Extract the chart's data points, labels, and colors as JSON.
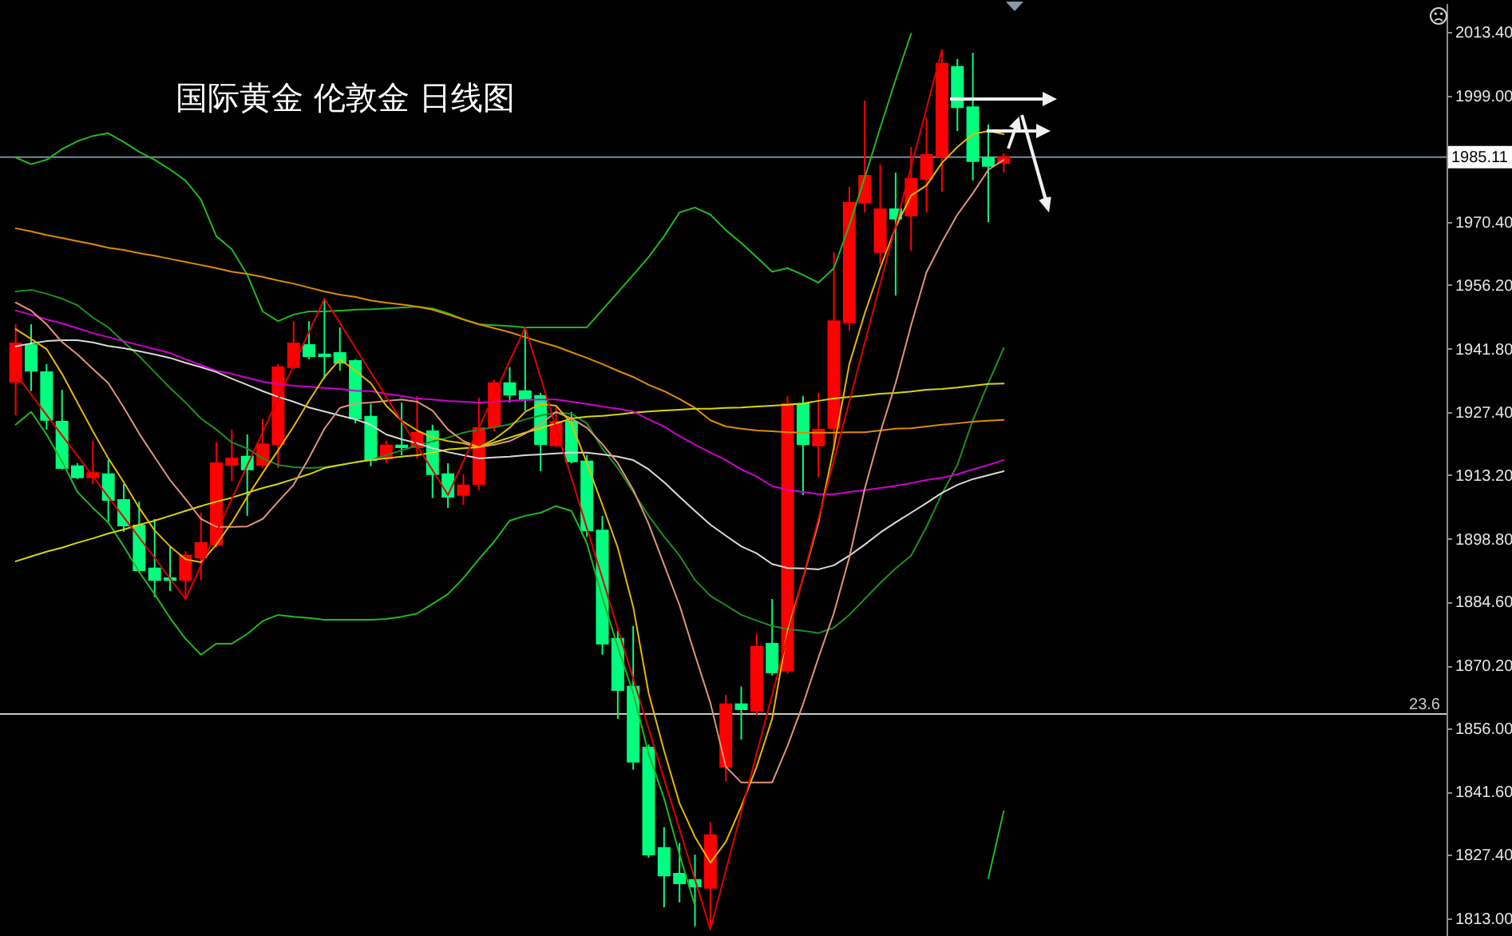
{
  "chart_data": {
    "type": "candlestick",
    "title": "国际黄金 伦敦金 日线图",
    "categories": [
      null,
      null,
      null,
      null,
      null,
      null,
      null,
      null,
      null,
      null,
      null,
      null,
      null,
      null,
      null,
      null,
      null,
      null,
      null,
      null,
      null,
      null,
      null,
      null,
      null,
      null,
      null,
      null,
      null,
      null,
      null,
      null,
      null,
      null,
      null,
      null,
      null,
      null,
      null,
      null,
      null,
      null,
      null,
      null,
      null,
      null,
      null,
      null,
      null,
      null,
      null,
      null,
      null,
      null,
      null,
      null,
      null,
      null,
      null,
      null,
      null,
      null,
      null,
      null,
      null
    ],
    "tick_labels": "y",
    "ylim": [
      1809.0,
      2019.9
    ],
    "yticks": [
      {
        "value": 2013.4,
        "label": "2013.40"
      },
      {
        "value": 1999.0,
        "label": "1999.00"
      },
      {
        "value": 1970.4,
        "label": "1970.40"
      },
      {
        "value": 1956.2,
        "label": "1956.20"
      },
      {
        "value": 1941.8,
        "label": "1941.80"
      },
      {
        "value": 1927.4,
        "label": "1927.40"
      },
      {
        "value": 1913.2,
        "label": "1913.20"
      },
      {
        "value": 1898.8,
        "label": "1898.80"
      },
      {
        "value": 1884.6,
        "label": "1884.60"
      },
      {
        "value": 1870.2,
        "label": "1870.20"
      },
      {
        "value": 1856.0,
        "label": "1856.00"
      },
      {
        "value": 1841.6,
        "label": "1841.60"
      },
      {
        "value": 1827.4,
        "label": "1827.40"
      },
      {
        "value": 1813.0,
        "label": "1813.00"
      }
    ],
    "ohlc": [
      [
        1934.3,
        1947.3,
        1926.7,
        1943.0
      ],
      [
        1942.6,
        1947.3,
        1932.2,
        1936.8
      ],
      [
        1936.5,
        1938.3,
        1923.5,
        1925.7
      ],
      [
        1925.3,
        1932.5,
        1914.5,
        1914.8
      ],
      [
        1915.2,
        1915.9,
        1912.3,
        1912.7
      ],
      [
        1912.7,
        1921.0,
        1911.2,
        1913.7
      ],
      [
        1913.4,
        1916.6,
        1902.5,
        1907.6
      ],
      [
        1907.6,
        1911.2,
        1900.4,
        1901.8
      ],
      [
        1901.8,
        1907.2,
        1891.4,
        1891.7
      ],
      [
        1892.1,
        1903.3,
        1885.6,
        1889.5
      ],
      [
        1889.9,
        1897.1,
        1887.0,
        1889.5
      ],
      [
        1889.5,
        1896.0,
        1885.2,
        1895.0
      ],
      [
        1894.6,
        1904.7,
        1889.5,
        1897.9
      ],
      [
        1897.5,
        1920.6,
        1896.8,
        1915.9
      ],
      [
        1915.5,
        1923.5,
        1911.9,
        1917.0
      ],
      [
        1917.4,
        1922.4,
        1904.0,
        1914.5
      ],
      [
        1915.5,
        1926.0,
        1914.8,
        1920.2
      ],
      [
        1920.2,
        1938.3,
        1914.8,
        1937.6
      ],
      [
        1937.6,
        1948.0,
        1937.3,
        1943.0
      ],
      [
        1942.6,
        1948.0,
        1939.4,
        1940.1
      ],
      [
        1940.5,
        1953.1,
        1935.0,
        1940.1
      ],
      [
        1940.8,
        1946.6,
        1936.8,
        1938.6
      ],
      [
        1939.0,
        1939.4,
        1924.9,
        1926.0
      ],
      [
        1926.4,
        1929.3,
        1915.2,
        1916.6
      ],
      [
        1917.0,
        1921.0,
        1915.9,
        1919.9
      ],
      [
        1919.9,
        1929.6,
        1917.7,
        1919.5
      ],
      [
        1919.5,
        1931.1,
        1917.0,
        1922.8
      ],
      [
        1923.1,
        1924.6,
        1908.0,
        1913.4
      ],
      [
        1913.4,
        1915.9,
        1905.8,
        1908.3
      ],
      [
        1908.7,
        1913.4,
        1906.5,
        1910.9
      ],
      [
        1911.2,
        1930.7,
        1909.8,
        1923.9
      ],
      [
        1924.2,
        1934.7,
        1923.1,
        1934.0
      ],
      [
        1934.0,
        1937.6,
        1929.6,
        1931.4
      ],
      [
        1932.2,
        1946.6,
        1927.8,
        1930.3
      ],
      [
        1931.1,
        1931.8,
        1914.1,
        1920.2
      ],
      [
        1919.9,
        1928.5,
        1919.5,
        1925.3
      ],
      [
        1925.3,
        1927.5,
        1915.9,
        1916.3
      ],
      [
        1916.3,
        1917.7,
        1899.3,
        1900.7
      ],
      [
        1900.7,
        1904.0,
        1872.6,
        1875.1
      ],
      [
        1876.2,
        1878.0,
        1858.1,
        1864.6
      ],
      [
        1865.4,
        1879.1,
        1846.6,
        1848.4
      ],
      [
        1851.6,
        1852.3,
        1826.7,
        1827.4
      ],
      [
        1828.9,
        1833.6,
        1815.5,
        1822.7
      ],
      [
        1823.1,
        1830.0,
        1816.6,
        1820.9
      ],
      [
        1821.7,
        1827.4,
        1811.2,
        1820.2
      ],
      [
        1819.9,
        1834.7,
        1810.5,
        1831.8
      ],
      [
        1847.3,
        1863.5,
        1844.0,
        1861.4
      ],
      [
        1861.4,
        1865.4,
        1853.4,
        1860.3
      ],
      [
        1859.9,
        1877.3,
        1858.9,
        1874.4
      ],
      [
        1875.1,
        1885.2,
        1867.9,
        1868.6
      ],
      [
        1869.0,
        1931.1,
        1868.3,
        1929.3
      ],
      [
        1929.3,
        1931.1,
        1908.7,
        1920.2
      ],
      [
        1919.9,
        1931.8,
        1912.7,
        1923.5
      ],
      [
        1923.9,
        1963.6,
        1918.8,
        1948.0
      ],
      [
        1947.7,
        1978.4,
        1945.9,
        1974.8
      ],
      [
        1974.8,
        1997.9,
        1972.6,
        1980.9
      ],
      [
        1963.6,
        1983.4,
        1961.0,
        1973.3
      ],
      [
        1973.3,
        1981.6,
        1953.8,
        1971.2
      ],
      [
        1971.9,
        1987.4,
        1963.9,
        1980.2
      ],
      [
        1980.2,
        1993.9,
        1972.6,
        1985.6
      ],
      [
        1985.2,
        2009.4,
        1977.3,
        2006.2
      ],
      [
        2005.5,
        2007.3,
        1991.0,
        1996.4
      ],
      [
        1996.4,
        2008.7,
        1979.8,
        1984.2
      ],
      [
        1984.9,
        1992.5,
        1970.4,
        1983.1
      ],
      [
        1983.8,
        1986.0,
        1981.6,
        1985.1
      ]
    ],
    "colors": [
      "#ff0000",
      "#00ff7f",
      "#00ff7f",
      "#00ff7f",
      "#00ff7f",
      "#ff0000",
      "#00ff7f",
      "#00ff7f",
      "#00ff7f",
      "#00ff7f",
      "#00ff7f",
      "#ff0000",
      "#ff0000",
      "#ff0000",
      "#ff0000",
      "#00ff7f",
      "#ff0000",
      "#ff0000",
      "#ff0000",
      "#00ff7f",
      "#00ff7f",
      "#00ff7f",
      "#00ff7f",
      "#00ff7f",
      "#ff0000",
      "#00ff7f",
      "#ff0000",
      "#00ff7f",
      "#00ff7f",
      "#ff0000",
      "#ff0000",
      "#ff0000",
      "#00ff7f",
      "#00ff7f",
      "#00ff7f",
      "#ff0000",
      "#00ff7f",
      "#00ff7f",
      "#00ff7f",
      "#00ff7f",
      "#00ff7f",
      "#00ff7f",
      "#00ff7f",
      "#00ff7f",
      "#00ff7f",
      "#ff0000",
      "#ff0000",
      "#00ff7f",
      "#ff0000",
      "#00ff7f",
      "#ff0000",
      "#00ff7f",
      "#ff0000",
      "#ff0000",
      "#ff0000",
      "#ff0000",
      "#ff0000",
      "#00ff7f",
      "#ff0000",
      "#ff0000",
      "#ff0000",
      "#00ff7f",
      "#00ff7f",
      "#00ff7f",
      "#ff0000"
    ],
    "series": [
      {
        "type": "line",
        "color": "#22b822",
        "values": [
          1985.0,
          1983.5,
          1984.5,
          1986.9,
          1988.7,
          1989.9,
          1990.5,
          1988.5,
          1986.3,
          1984.5,
          1982.3,
          1979.8,
          1975.5,
          1967.2,
          1964.3,
          1958.5,
          1950.2,
          1948.0,
          1949.5,
          1950.2,
          1950.2,
          1950.4,
          1950.6,
          1950.7,
          1950.9,
          1951.1,
          1951.3,
          1950.9,
          1949.8,
          1948.4,
          1947.3,
          1947.1,
          1946.9,
          1946.6,
          1946.6,
          1946.6,
          1946.6,
          1946.6,
          1950.6,
          1954.5,
          1958.5,
          1962.5,
          1967.2,
          1972.6,
          1973.7,
          1972.1,
          1968.6,
          1965.7,
          1962.5,
          1959.2,
          1960.0,
          1958.5,
          1956.7,
          1960.0,
          1969.7,
          1980.5,
          1991.7,
          2002.6,
          2013.0,
          null,
          null,
          null,
          null,
          null,
          null
        ]
      },
      {
        "type": "line",
        "color": "#22b822",
        "values": [
          1924.6,
          1927.5,
          1922.4,
          1916.3,
          1909.4,
          1905.8,
          1902.5,
          1897.1,
          1891.3,
          1886.3,
          1880.9,
          1876.2,
          1872.6,
          1875.1,
          1875.1,
          1877.3,
          1880.2,
          1881.6,
          1881.2,
          1880.9,
          1880.5,
          1880.5,
          1880.5,
          1880.5,
          1880.7,
          1881.2,
          1881.9,
          1884.1,
          1886.3,
          1889.9,
          1894.2,
          1898.2,
          1902.9,
          1904.0,
          1904.7,
          1906.2,
          1905.1,
          1897.8,
          1885.6,
          1874.4,
          1863.9,
          1850.2,
          1840.1,
          1827.4,
          1815.9,
          null,
          null,
          null,
          null,
          null,
          null,
          null,
          null,
          null,
          null,
          null,
          null,
          null,
          null,
          null,
          null,
          null,
          null,
          1822.0,
          1837.2
        ]
      },
      {
        "type": "line",
        "color": "#1f8f1f",
        "values": [
          1954.7,
          1955.1,
          1954.2,
          1953.1,
          1951.6,
          1948.8,
          1946.6,
          1943.3,
          1940.1,
          1936.5,
          1932.9,
          1929.6,
          1926.0,
          1923.5,
          1920.6,
          1919.2,
          1917.0,
          1915.5,
          1915.0,
          1914.8,
          1915.0,
          1915.5,
          1916.1,
          1916.6,
          1917.7,
          1918.8,
          1919.9,
          1920.8,
          1921.7,
          1922.8,
          1923.5,
          1924.0,
          1924.7,
          1925.8,
          1926.7,
          1927.3,
          1927.1,
          1924.9,
          1919.2,
          1914.8,
          1909.4,
          1904.0,
          1899.3,
          1895.0,
          1889.5,
          1885.9,
          1883.8,
          1881.6,
          1880.3,
          1879.1,
          1878.4,
          1878.0,
          1877.5,
          1878.7,
          1881.6,
          1885.2,
          1888.8,
          1892.1,
          1895.0,
          1901.5,
          1909.0,
          1915.5,
          1925.6,
          1934.0,
          1941.9
        ]
      },
      {
        "type": "line",
        "color": "#e08c00",
        "values": [
          1969.0,
          1968.3,
          1967.5,
          1966.8,
          1966.1,
          1965.4,
          1964.6,
          1964.1,
          1963.4,
          1962.8,
          1962.1,
          1961.4,
          1960.7,
          1960.0,
          1959.2,
          1958.7,
          1958.0,
          1957.2,
          1956.5,
          1955.6,
          1954.7,
          1954.0,
          1953.5,
          1952.7,
          1952.2,
          1951.8,
          1951.3,
          1950.6,
          1949.5,
          1948.4,
          1947.3,
          1946.4,
          1945.5,
          1944.4,
          1943.3,
          1942.3,
          1941.0,
          1939.7,
          1938.3,
          1936.8,
          1935.4,
          1933.6,
          1932.2,
          1930.4,
          1928.4,
          1925.6,
          1924.2,
          1923.7,
          1923.3,
          1923.1,
          1922.9,
          1922.8,
          1922.8,
          1922.8,
          1922.9,
          1922.9,
          1923.3,
          1923.7,
          1923.8,
          1924.2,
          1924.6,
          1924.9,
          1925.3,
          1925.5,
          1925.7
        ]
      },
      {
        "type": "line",
        "color": "#d8d800",
        "values": [
          1893.7,
          1894.8,
          1895.9,
          1896.8,
          1897.9,
          1898.9,
          1900.0,
          1900.9,
          1902.0,
          1902.9,
          1904.0,
          1905.1,
          1906.2,
          1907.2,
          1908.1,
          1909.2,
          1910.3,
          1911.2,
          1912.3,
          1913.4,
          1914.8,
          1915.5,
          1916.1,
          1916.6,
          1917.0,
          1917.4,
          1917.7,
          1918.3,
          1919.0,
          1919.3,
          1919.5,
          1920.6,
          1921.7,
          1922.8,
          1923.8,
          1924.9,
          1926.0,
          1926.4,
          1926.6,
          1926.9,
          1927.3,
          1927.6,
          1927.8,
          1928.0,
          1928.2,
          1928.2,
          1928.4,
          1928.5,
          1928.7,
          1928.9,
          1929.1,
          1929.4,
          1930.0,
          1930.5,
          1930.9,
          1931.2,
          1931.6,
          1931.8,
          1932.1,
          1932.5,
          1932.7,
          1933.0,
          1933.4,
          1933.8,
          1933.9
        ]
      },
      {
        "type": "line",
        "color": "#d000d0",
        "values": [
          1950.4,
          1949.5,
          1948.4,
          1947.5,
          1946.4,
          1945.3,
          1944.4,
          1943.5,
          1942.6,
          1941.7,
          1940.8,
          1939.4,
          1938.1,
          1936.8,
          1936.1,
          1935.2,
          1934.3,
          1933.8,
          1933.4,
          1933.2,
          1932.9,
          1932.7,
          1932.3,
          1932.2,
          1931.6,
          1931.1,
          1930.5,
          1930.3,
          1930.0,
          1929.8,
          1929.6,
          1929.8,
          1930.0,
          1930.2,
          1930.3,
          1930.3,
          1929.8,
          1929.3,
          1928.7,
          1928.2,
          1927.6,
          1925.8,
          1924.2,
          1922.0,
          1920.1,
          1918.3,
          1916.6,
          1914.5,
          1912.9,
          1910.7,
          1909.9,
          1909.4,
          1908.9,
          1908.9,
          1909.4,
          1909.8,
          1910.3,
          1910.8,
          1911.4,
          1912.1,
          1912.6,
          1913.4,
          1914.5,
          1915.5,
          1916.6
        ]
      },
      {
        "type": "line",
        "color": "#d9d9d9",
        "values": [
          1942.3,
          1943.0,
          1943.5,
          1943.7,
          1943.7,
          1943.2,
          1942.4,
          1941.9,
          1941.2,
          1940.5,
          1939.7,
          1938.6,
          1937.6,
          1936.5,
          1935.0,
          1933.6,
          1932.2,
          1930.9,
          1929.8,
          1928.5,
          1927.6,
          1926.7,
          1925.8,
          1924.6,
          1922.4,
          1921.3,
          1920.4,
          1919.3,
          1918.4,
          1917.7,
          1917.0,
          1917.2,
          1917.4,
          1917.7,
          1917.9,
          1918.1,
          1918.3,
          1918.3,
          1917.9,
          1917.4,
          1916.6,
          1914.5,
          1911.6,
          1908.3,
          1905.1,
          1902.0,
          1899.5,
          1897.1,
          1895.5,
          1893.1,
          1892.2,
          1892.1,
          1891.9,
          1892.8,
          1895.0,
          1897.5,
          1900.2,
          1902.5,
          1904.7,
          1906.9,
          1909.2,
          1911.0,
          1912.3,
          1913.2,
          1914.1
        ]
      },
      {
        "type": "line",
        "color": "#e0957a",
        "values": [
          1952.2,
          1950.4,
          1947.3,
          1943.3,
          1940.5,
          1937.2,
          1934.0,
          1928.5,
          1922.6,
          1917.3,
          1912.1,
          1907.8,
          1903.3,
          1901.5,
          1901.5,
          1901.6,
          1903.3,
          1907.2,
          1911.0,
          1917.1,
          1923.7,
          1928.4,
          1929.4,
          1929.6,
          1930.0,
          1930.3,
          1929.8,
          1927.8,
          1923.5,
          1920.9,
          1919.5,
          1920.1,
          1920.9,
          1922.6,
          1924.7,
          1927.5,
          1926.0,
          1923.9,
          1920.2,
          1915.9,
          1909.9,
          1902.2,
          1893.0,
          1883.8,
          1872.6,
          1861.7,
          1847.3,
          1843.7,
          1843.7,
          1843.7,
          1852.0,
          1861.4,
          1871.9,
          1882.0,
          1894.6,
          1910.1,
          1922.8,
          1934.0,
          1947.1,
          1959.1,
          1965.9,
          1972.1,
          1976.9,
          1982.2,
          1984.5
        ]
      },
      {
        "type": "line",
        "color": "#e6b800",
        "values": [
          1946.2,
          1944.0,
          1941.7,
          1936.1,
          1929.6,
          1923.1,
          1917.0,
          1911.6,
          1905.8,
          1900.7,
          1897.1,
          1894.2,
          1893.5,
          1897.5,
          1902.5,
          1908.3,
          1913.7,
          1918.8,
          1924.2,
          1930.0,
          1935.4,
          1939.4,
          1936.8,
          1934.0,
          1928.9,
          1925.5,
          1923.3,
          1921.7,
          1920.9,
          1920.4,
          1919.5,
          1921.3,
          1923.9,
          1927.5,
          1929.3,
          1928.9,
          1924.9,
          1915.9,
          1906.5,
          1896.8,
          1883.4,
          1863.9,
          1850.9,
          1839.0,
          1831.4,
          1825.6,
          1830.3,
          1838.3,
          1847.3,
          1858.1,
          1878.0,
          1889.9,
          1902.5,
          1919.5,
          1938.3,
          1949.8,
          1960.0,
          1969.3,
          1976.4,
          1978.7,
          1983.8,
          1987.4,
          1990.3,
          1991.0,
          1990.3
        ]
      },
      {
        "type": "line",
        "color": "#e00000",
        "values": [
          1936.1,
          1931.5,
          1926.8,
          1922.2,
          1917.6,
          1913.0,
          1908.3,
          1903.7,
          1899.1,
          1894.5,
          1889.8,
          1885.2,
          1892.7,
          1900.3,
          1907.8,
          1915.4,
          1922.9,
          1930.5,
          1938.0,
          1945.6,
          1953.1,
          1947.6,
          1942.0,
          1936.5,
          1930.9,
          1925.4,
          1919.8,
          1914.3,
          1908.7,
          1916.3,
          1923.9,
          1931.4,
          1939.0,
          1946.6,
          1935.3,
          1923.9,
          1912.6,
          1901.2,
          1889.9,
          1878.5,
          1867.2,
          1855.9,
          1844.5,
          1833.2,
          1821.8,
          1810.5,
          1823.8,
          1837.0,
          1850.3,
          1863.5,
          1876.8,
          1890.1,
          1903.3,
          1916.6,
          1929.8,
          1943.1,
          1956.4,
          1969.6,
          1982.9,
          1996.1,
          2009.4,
          null,
          null,
          null,
          null
        ]
      }
    ],
    "ref_lines": [
      {
        "axis": "y",
        "value": 1985.11,
        "label": "1985.11",
        "color": "#7b8aa0"
      },
      {
        "axis": "y",
        "value": 1859.2,
        "color": "#c8c8c8"
      }
    ],
    "annotations": [
      {
        "text": "23.6",
        "y": 1859.2
      }
    ]
  }
}
